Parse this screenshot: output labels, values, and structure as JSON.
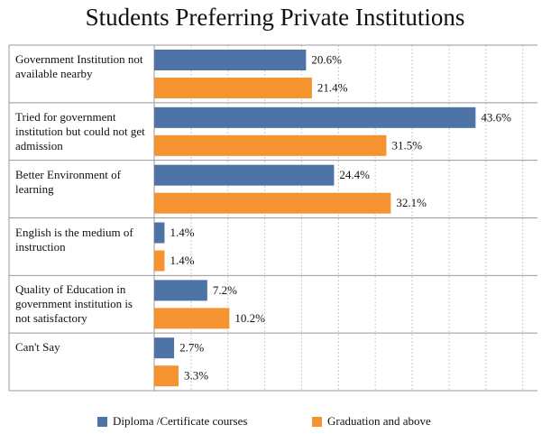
{
  "chart_data": {
    "type": "bar",
    "orientation": "horizontal",
    "title": "Students Preferring Private Institutions",
    "categories": [
      "Government Institution not available nearby",
      "Tried for government institution but could not get admission",
      "Better Environment of learning",
      "English is the medium of instruction",
      "Quality of Education in government institution is not satisfactory",
      "Can't Say"
    ],
    "series": [
      {
        "name": "Diploma /Certificate courses",
        "color": "#4e73a6",
        "values": [
          20.6,
          43.6,
          24.4,
          1.4,
          7.2,
          2.7
        ],
        "value_labels": [
          "20.6%",
          "43.6%",
          "24.4%",
          "1.4%",
          "7.2%",
          "2.7%"
        ]
      },
      {
        "name": "Graduation and above",
        "color": "#f4932f",
        "values": [
          21.4,
          31.5,
          32.1,
          1.4,
          10.2,
          3.3
        ],
        "value_labels": [
          "21.4%",
          "31.5%",
          "32.1%",
          "1.4%",
          "10.2%",
          "3.3%"
        ]
      }
    ],
    "xlim": [
      0,
      52
    ],
    "xticks": [
      0,
      5,
      10,
      15,
      20,
      25,
      30,
      35,
      40,
      45,
      50
    ],
    "grid": true,
    "legend": "bottom"
  }
}
